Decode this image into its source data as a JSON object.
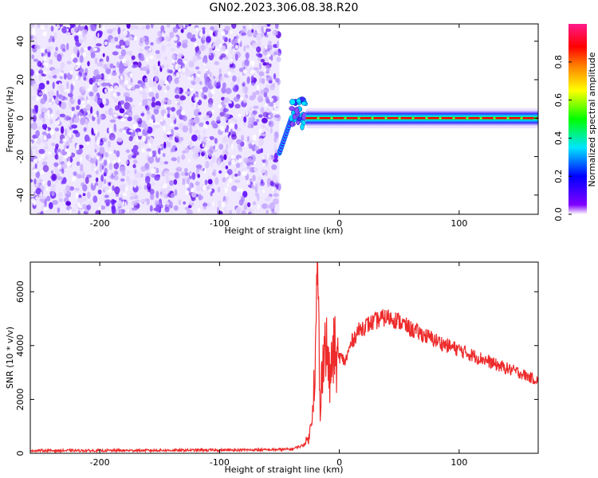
{
  "chart_data": [
    {
      "type": "heatmap",
      "title": "GN02.2023.306.08.38.R20",
      "xlabel": "Height of straight line (km)",
      "ylabel": "Frequency (Hz)",
      "xlim": [
        -258,
        166
      ],
      "ylim": [
        -50,
        49
      ],
      "x_ticks": [
        -200,
        -100,
        0,
        100
      ],
      "y_ticks": [
        -40,
        -20,
        0,
        20,
        40
      ],
      "colorbar": {
        "label": "Normalized spectral amplitude",
        "range": [
          0,
          1
        ],
        "ticks": [
          0.0,
          0.2,
          0.4,
          0.6,
          0.8
        ],
        "colors": [
          "#ffffff",
          "#8000ff",
          "#0000ff",
          "#00e5ff",
          "#00ff00",
          "#ffff00",
          "#ff8000",
          "#ff0000",
          "#ff1a8c"
        ]
      },
      "regions": [
        {
          "x": [
            -258,
            -50
          ],
          "frequency": [
            -50,
            49
          ],
          "amplitude": [
            0.05,
            0.15
          ],
          "pattern": "noise speckle"
        },
        {
          "x": [
            -50,
            -40
          ],
          "frequency": [
            -18,
            0
          ],
          "amplitude": [
            0.2,
            0.4
          ],
          "pattern": "rising streak"
        },
        {
          "x": [
            -40,
            -28
          ],
          "frequency": [
            -5,
            10
          ],
          "amplitude": [
            0.3,
            0.5
          ],
          "pattern": "scattered blobs"
        },
        {
          "x": [
            -28,
            166
          ],
          "frequency": [
            -4,
            4
          ],
          "amplitude": [
            0.4,
            1.0
          ],
          "pattern": "horizontal band peaking near 0 Hz"
        }
      ],
      "band_peak_line": {
        "x": [
          -28,
          166
        ],
        "frequency": [
          0,
          0
        ],
        "color": "#ff0000"
      }
    },
    {
      "type": "line",
      "xlabel": "Height of straight line (km)",
      "ylabel": "SNR (10 * v/v)",
      "xlim": [
        -258,
        166
      ],
      "ylim": [
        0,
        7100
      ],
      "x_ticks": [
        -200,
        -100,
        0,
        100
      ],
      "y_ticks": [
        0,
        2000,
        4000,
        6000
      ],
      "series": [
        {
          "color": "#ee2b2b",
          "x": [
            -258,
            -200,
            -150,
            -100,
            -60,
            -40,
            -30,
            -25,
            -22,
            -20,
            -18,
            -16,
            -15,
            -13,
            -10,
            -8,
            -6,
            -4,
            -2,
            0,
            5,
            10,
            15,
            20,
            25,
            30,
            35,
            40,
            45,
            50,
            60,
            70,
            80,
            90,
            100,
            110,
            120,
            130,
            140,
            150,
            160,
            166
          ],
          "y": [
            100,
            100,
            110,
            120,
            130,
            150,
            300,
            600,
            2000,
            3500,
            7100,
            1000,
            2600,
            4100,
            3800,
            2600,
            3500,
            3900,
            3200,
            3600,
            3400,
            4100,
            4500,
            4700,
            4800,
            4900,
            5000,
            5050,
            5000,
            4900,
            4600,
            4400,
            4200,
            4000,
            3850,
            3650,
            3500,
            3300,
            3150,
            3000,
            2800,
            2700
          ]
        }
      ]
    }
  ]
}
